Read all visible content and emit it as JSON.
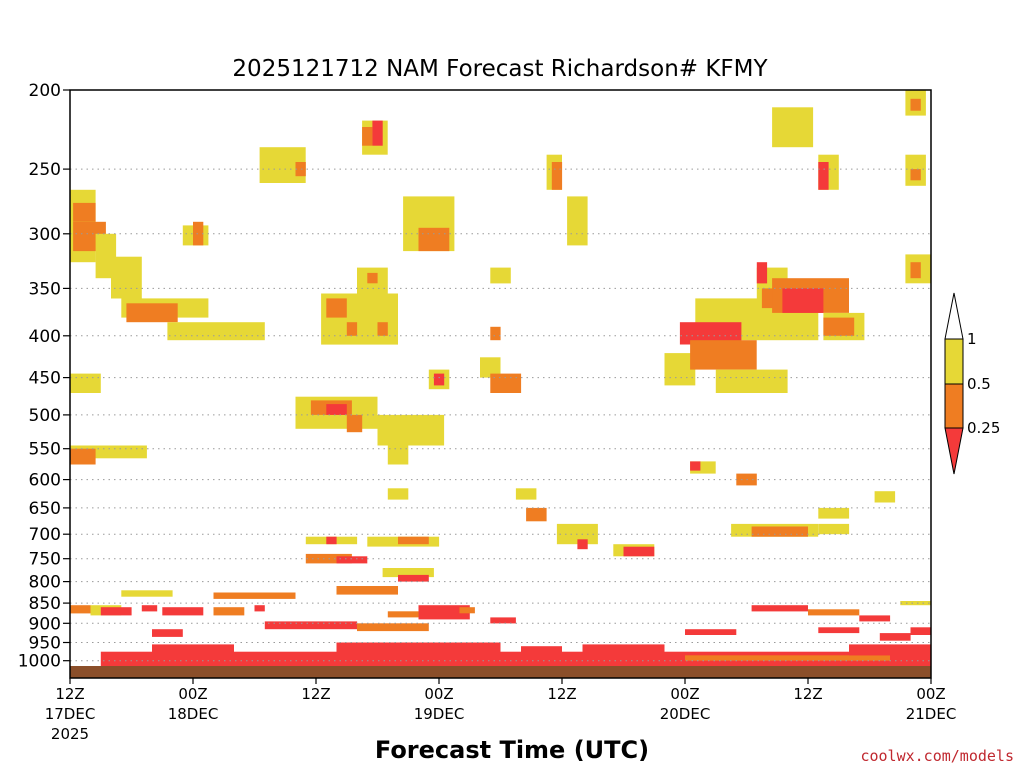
{
  "chart_data": {
    "type": "heatmap",
    "title": "2025121712 NAM Forecast Richardson# KFMY",
    "xlabel": "Forecast Time (UTC)",
    "ylabel": "",
    "credit": "coolwx.com/models",
    "x_range_hours": [
      0,
      84
    ],
    "y_log_scale": true,
    "y_range_hpa": [
      200,
      1050
    ],
    "grid": "dotted horizontal at pressure levels",
    "y_ticks": [
      200,
      250,
      300,
      350,
      400,
      450,
      500,
      550,
      600,
      650,
      700,
      750,
      800,
      850,
      900,
      950,
      1000
    ],
    "x_ticks": [
      {
        "hour": 0,
        "time": "12Z",
        "date": "17DEC",
        "year": "2025"
      },
      {
        "hour": 12,
        "time": "00Z",
        "date": "18DEC",
        "year": ""
      },
      {
        "hour": 24,
        "time": "12Z",
        "date": "",
        "year": ""
      },
      {
        "hour": 36,
        "time": "00Z",
        "date": "19DEC",
        "year": ""
      },
      {
        "hour": 48,
        "time": "12Z",
        "date": "",
        "year": ""
      },
      {
        "hour": 60,
        "time": "00Z",
        "date": "20DEC",
        "year": ""
      },
      {
        "hour": 72,
        "time": "12Z",
        "date": "",
        "year": ""
      },
      {
        "hour": 84,
        "time": "00Z",
        "date": "21DEC",
        "year": ""
      }
    ],
    "colorbar": {
      "labels": [
        "1",
        "0.5",
        "0.25"
      ],
      "bins": [
        {
          "range": "0.5-1",
          "color": "#e6d836"
        },
        {
          "range": "0.25-0.5",
          "color": "#ef7d22"
        },
        {
          "range": "<0.25",
          "color": "#f43a3a"
        }
      ],
      "arrow_top_color": "#ffffff",
      "arrow_bottom_color": "#f43a3a"
    },
    "ground_color": "#8b4f2a",
    "cells": [
      {
        "h0": 0,
        "h1": 2.5,
        "p0": 265,
        "p1": 325,
        "c": "yellow"
      },
      {
        "h0": 0.3,
        "h1": 2.5,
        "p0": 275,
        "p1": 290,
        "c": "orange"
      },
      {
        "h0": 0.3,
        "h1": 3.5,
        "p0": 290,
        "p1": 315,
        "c": "orange"
      },
      {
        "h0": 2.5,
        "h1": 4.5,
        "p0": 300,
        "p1": 340,
        "c": "yellow"
      },
      {
        "h0": 4,
        "h1": 7,
        "p0": 320,
        "p1": 360,
        "c": "yellow"
      },
      {
        "h0": 5,
        "h1": 13.5,
        "p0": 360,
        "p1": 380,
        "c": "yellow"
      },
      {
        "h0": 5.5,
        "h1": 10.5,
        "p0": 365,
        "p1": 385,
        "c": "orange"
      },
      {
        "h0": 9.5,
        "h1": 19,
        "p0": 385,
        "p1": 405,
        "c": "yellow"
      },
      {
        "h0": 11,
        "h1": 13.5,
        "p0": 293,
        "p1": 310,
        "c": "yellow"
      },
      {
        "h0": 12,
        "h1": 13,
        "p0": 290,
        "p1": 310,
        "c": "orange"
      },
      {
        "h0": 0,
        "h1": 3,
        "p0": 445,
        "p1": 470,
        "c": "yellow"
      },
      {
        "h0": 0,
        "h1": 7.5,
        "p0": 545,
        "p1": 565,
        "c": "yellow"
      },
      {
        "h0": 0,
        "h1": 2.5,
        "p0": 550,
        "p1": 575,
        "c": "orange"
      },
      {
        "h0": 18.5,
        "h1": 23,
        "p0": 235,
        "p1": 260,
        "c": "yellow"
      },
      {
        "h0": 22,
        "h1": 23,
        "p0": 245,
        "p1": 255,
        "c": "orange"
      },
      {
        "h0": 28.5,
        "h1": 31,
        "p0": 218,
        "p1": 240,
        "c": "yellow"
      },
      {
        "h0": 28.5,
        "h1": 29.5,
        "p0": 222,
        "p1": 234,
        "c": "orange"
      },
      {
        "h0": 29.5,
        "h1": 30.5,
        "p0": 218,
        "p1": 234,
        "c": "red"
      },
      {
        "h0": 32.5,
        "h1": 37.5,
        "p0": 270,
        "p1": 315,
        "c": "yellow"
      },
      {
        "h0": 34,
        "h1": 37,
        "p0": 295,
        "p1": 315,
        "c": "orange"
      },
      {
        "h0": 28,
        "h1": 31,
        "p0": 330,
        "p1": 355,
        "c": "yellow"
      },
      {
        "h0": 29,
        "h1": 30,
        "p0": 335,
        "p1": 345,
        "c": "orange"
      },
      {
        "h0": 24.5,
        "h1": 32,
        "p0": 355,
        "p1": 410,
        "c": "yellow"
      },
      {
        "h0": 25,
        "h1": 27,
        "p0": 360,
        "p1": 380,
        "c": "orange"
      },
      {
        "h0": 27,
        "h1": 28,
        "p0": 385,
        "p1": 400,
        "c": "orange"
      },
      {
        "h0": 30,
        "h1": 31,
        "p0": 385,
        "p1": 400,
        "c": "orange"
      },
      {
        "h0": 22,
        "h1": 30,
        "p0": 475,
        "p1": 520,
        "c": "yellow"
      },
      {
        "h0": 23.5,
        "h1": 27.5,
        "p0": 480,
        "p1": 500,
        "c": "orange"
      },
      {
        "h0": 25,
        "h1": 27,
        "p0": 485,
        "p1": 500,
        "c": "red"
      },
      {
        "h0": 27,
        "h1": 28.5,
        "p0": 500,
        "p1": 525,
        "c": "orange"
      },
      {
        "h0": 30,
        "h1": 36.5,
        "p0": 500,
        "p1": 545,
        "c": "yellow"
      },
      {
        "h0": 31,
        "h1": 33,
        "p0": 545,
        "p1": 575,
        "c": "yellow"
      },
      {
        "h0": 35,
        "h1": 37,
        "p0": 440,
        "p1": 465,
        "c": "yellow"
      },
      {
        "h0": 35.5,
        "h1": 36.5,
        "p0": 445,
        "p1": 460,
        "c": "red"
      },
      {
        "h0": 40,
        "h1": 42,
        "p0": 425,
        "p1": 450,
        "c": "yellow"
      },
      {
        "h0": 41,
        "h1": 44,
        "p0": 445,
        "p1": 470,
        "c": "orange"
      },
      {
        "h0": 41,
        "h1": 42,
        "p0": 390,
        "p1": 405,
        "c": "orange"
      },
      {
        "h0": 41,
        "h1": 43,
        "p0": 330,
        "p1": 345,
        "c": "yellow"
      },
      {
        "h0": 46.5,
        "h1": 48,
        "p0": 240,
        "p1": 265,
        "c": "yellow"
      },
      {
        "h0": 47,
        "h1": 48,
        "p0": 245,
        "p1": 265,
        "c": "orange"
      },
      {
        "h0": 48.5,
        "h1": 50.5,
        "p0": 270,
        "p1": 310,
        "c": "yellow"
      },
      {
        "h0": 61,
        "h1": 73,
        "p0": 360,
        "p1": 405,
        "c": "yellow"
      },
      {
        "h0": 58,
        "h1": 61,
        "p0": 420,
        "p1": 460,
        "c": "yellow"
      },
      {
        "h0": 59.5,
        "h1": 65.5,
        "p0": 385,
        "p1": 410,
        "c": "red"
      },
      {
        "h0": 60.5,
        "h1": 67,
        "p0": 405,
        "p1": 440,
        "c": "orange"
      },
      {
        "h0": 63,
        "h1": 70,
        "p0": 440,
        "p1": 470,
        "c": "yellow"
      },
      {
        "h0": 67,
        "h1": 70,
        "p0": 330,
        "p1": 360,
        "c": "yellow"
      },
      {
        "h0": 67.5,
        "h1": 70,
        "p0": 350,
        "p1": 370,
        "c": "orange"
      },
      {
        "h0": 68.5,
        "h1": 76,
        "p0": 340,
        "p1": 375,
        "c": "orange"
      },
      {
        "h0": 69.5,
        "h1": 73.5,
        "p0": 350,
        "p1": 375,
        "c": "red"
      },
      {
        "h0": 73.5,
        "h1": 77.5,
        "p0": 375,
        "p1": 405,
        "c": "yellow"
      },
      {
        "h0": 73.5,
        "h1": 76.5,
        "p0": 380,
        "p1": 400,
        "c": "orange"
      },
      {
        "h0": 67,
        "h1": 68,
        "p0": 325,
        "p1": 345,
        "c": "red"
      },
      {
        "h0": 68.5,
        "h1": 72.5,
        "p0": 210,
        "p1": 235,
        "c": "yellow"
      },
      {
        "h0": 73,
        "h1": 75,
        "p0": 240,
        "p1": 265,
        "c": "yellow"
      },
      {
        "h0": 73,
        "h1": 74,
        "p0": 245,
        "p1": 265,
        "c": "red"
      },
      {
        "h0": 81.5,
        "h1": 84,
        "p0": 318,
        "p1": 345,
        "c": "yellow"
      },
      {
        "h0": 82,
        "h1": 83,
        "p0": 325,
        "p1": 340,
        "c": "orange"
      },
      {
        "h0": 81.5,
        "h1": 83.5,
        "p0": 200,
        "p1": 215,
        "c": "yellow"
      },
      {
        "h0": 82,
        "h1": 83,
        "p0": 205,
        "p1": 212,
        "c": "orange"
      },
      {
        "h0": 81.5,
        "h1": 83.5,
        "p0": 240,
        "p1": 262,
        "c": "yellow"
      },
      {
        "h0": 82,
        "h1": 83,
        "p0": 250,
        "p1": 258,
        "c": "orange"
      },
      {
        "h0": 65,
        "h1": 67,
        "p0": 590,
        "p1": 610,
        "c": "orange"
      },
      {
        "h0": 60.5,
        "h1": 63,
        "p0": 570,
        "p1": 590,
        "c": "yellow"
      },
      {
        "h0": 60.5,
        "h1": 61.5,
        "p0": 570,
        "p1": 585,
        "c": "red"
      },
      {
        "h0": 47.5,
        "h1": 51.5,
        "p0": 680,
        "p1": 720,
        "c": "yellow"
      },
      {
        "h0": 49.5,
        "h1": 50.5,
        "p0": 710,
        "p1": 730,
        "c": "red"
      },
      {
        "h0": 53,
        "h1": 57,
        "p0": 720,
        "p1": 745,
        "c": "yellow"
      },
      {
        "h0": 54,
        "h1": 57,
        "p0": 725,
        "p1": 745,
        "c": "red"
      },
      {
        "h0": 64.5,
        "h1": 73,
        "p0": 680,
        "p1": 705,
        "c": "yellow"
      },
      {
        "h0": 66.5,
        "h1": 72,
        "p0": 685,
        "p1": 705,
        "c": "orange"
      },
      {
        "h0": 73,
        "h1": 76,
        "p0": 680,
        "p1": 700,
        "c": "yellow"
      },
      {
        "h0": 73,
        "h1": 76,
        "p0": 650,
        "p1": 670,
        "c": "yellow"
      },
      {
        "h0": 78.5,
        "h1": 80.5,
        "p0": 620,
        "p1": 640,
        "c": "yellow"
      },
      {
        "h0": 43.5,
        "h1": 45.5,
        "p0": 615,
        "p1": 635,
        "c": "yellow"
      },
      {
        "h0": 44.5,
        "h1": 46.5,
        "p0": 650,
        "p1": 675,
        "c": "orange"
      },
      {
        "h0": 31,
        "h1": 33,
        "p0": 615,
        "p1": 635,
        "c": "yellow"
      },
      {
        "h0": 23,
        "h1": 28,
        "p0": 705,
        "p1": 720,
        "c": "yellow"
      },
      {
        "h0": 25,
        "h1": 26,
        "p0": 705,
        "p1": 720,
        "c": "red"
      },
      {
        "h0": 23,
        "h1": 27.5,
        "p0": 740,
        "p1": 760,
        "c": "orange"
      },
      {
        "h0": 26,
        "h1": 29,
        "p0": 745,
        "p1": 760,
        "c": "red"
      },
      {
        "h0": 29,
        "h1": 36,
        "p0": 705,
        "p1": 725,
        "c": "yellow"
      },
      {
        "h0": 32,
        "h1": 35,
        "p0": 705,
        "p1": 720,
        "c": "orange"
      },
      {
        "h0": 30.5,
        "h1": 35.5,
        "p0": 770,
        "p1": 790,
        "c": "yellow"
      },
      {
        "h0": 32,
        "h1": 35,
        "p0": 785,
        "p1": 800,
        "c": "red"
      },
      {
        "h0": 26,
        "h1": 32,
        "p0": 810,
        "p1": 830,
        "c": "orange"
      },
      {
        "h0": 5,
        "h1": 10,
        "p0": 820,
        "p1": 835,
        "c": "yellow"
      },
      {
        "h0": 14,
        "h1": 22,
        "p0": 825,
        "p1": 840,
        "c": "orange"
      },
      {
        "h0": 0,
        "h1": 2,
        "p0": 855,
        "p1": 875,
        "c": "orange"
      },
      {
        "h0": 2,
        "h1": 5,
        "p0": 855,
        "p1": 880,
        "c": "yellow"
      },
      {
        "h0": 3,
        "h1": 6,
        "p0": 860,
        "p1": 880,
        "c": "red"
      },
      {
        "h0": 7,
        "h1": 8.5,
        "p0": 855,
        "p1": 870,
        "c": "red"
      },
      {
        "h0": 9,
        "h1": 13,
        "p0": 860,
        "p1": 880,
        "c": "red"
      },
      {
        "h0": 14,
        "h1": 17,
        "p0": 860,
        "p1": 880,
        "c": "orange"
      },
      {
        "h0": 18,
        "h1": 19,
        "p0": 855,
        "p1": 870,
        "c": "red"
      },
      {
        "h0": 34,
        "h1": 39,
        "p0": 855,
        "p1": 890,
        "c": "red"
      },
      {
        "h0": 38,
        "h1": 39.5,
        "p0": 860,
        "p1": 875,
        "c": "orange"
      },
      {
        "h0": 31,
        "h1": 34,
        "p0": 870,
        "p1": 885,
        "c": "orange"
      },
      {
        "h0": 41,
        "h1": 43.5,
        "p0": 885,
        "p1": 900,
        "c": "red"
      },
      {
        "h0": 66.5,
        "h1": 72,
        "p0": 855,
        "p1": 870,
        "c": "red"
      },
      {
        "h0": 72,
        "h1": 77,
        "p0": 865,
        "p1": 880,
        "c": "orange"
      },
      {
        "h0": 77,
        "h1": 80,
        "p0": 880,
        "p1": 895,
        "c": "red"
      },
      {
        "h0": 81,
        "h1": 84,
        "p0": 845,
        "p1": 855,
        "c": "yellow"
      },
      {
        "h0": 19,
        "h1": 28,
        "p0": 895,
        "p1": 915,
        "c": "red"
      },
      {
        "h0": 28,
        "h1": 35,
        "p0": 900,
        "p1": 920,
        "c": "orange"
      },
      {
        "h0": 8,
        "h1": 11,
        "p0": 915,
        "p1": 935,
        "c": "red"
      },
      {
        "h0": 60,
        "h1": 65,
        "p0": 915,
        "p1": 930,
        "c": "red"
      },
      {
        "h0": 73,
        "h1": 77,
        "p0": 910,
        "p1": 925,
        "c": "red"
      },
      {
        "h0": 79,
        "h1": 82,
        "p0": 925,
        "p1": 945,
        "c": "red"
      },
      {
        "h0": 82,
        "h1": 84,
        "p0": 910,
        "p1": 930,
        "c": "red"
      },
      {
        "h0": 3,
        "h1": 84,
        "p0": 975,
        "p1": 1015,
        "c": "red"
      },
      {
        "h0": 8,
        "h1": 16,
        "p0": 955,
        "p1": 980,
        "c": "red"
      },
      {
        "h0": 26,
        "h1": 42,
        "p0": 950,
        "p1": 980,
        "c": "red"
      },
      {
        "h0": 44,
        "h1": 48,
        "p0": 960,
        "p1": 980,
        "c": "red"
      },
      {
        "h0": 50,
        "h1": 58,
        "p0": 955,
        "p1": 980,
        "c": "red"
      },
      {
        "h0": 60,
        "h1": 80,
        "p0": 985,
        "p1": 1000,
        "c": "orange"
      },
      {
        "h0": 76,
        "h1": 84,
        "p0": 955,
        "p1": 985,
        "c": "red"
      }
    ]
  }
}
